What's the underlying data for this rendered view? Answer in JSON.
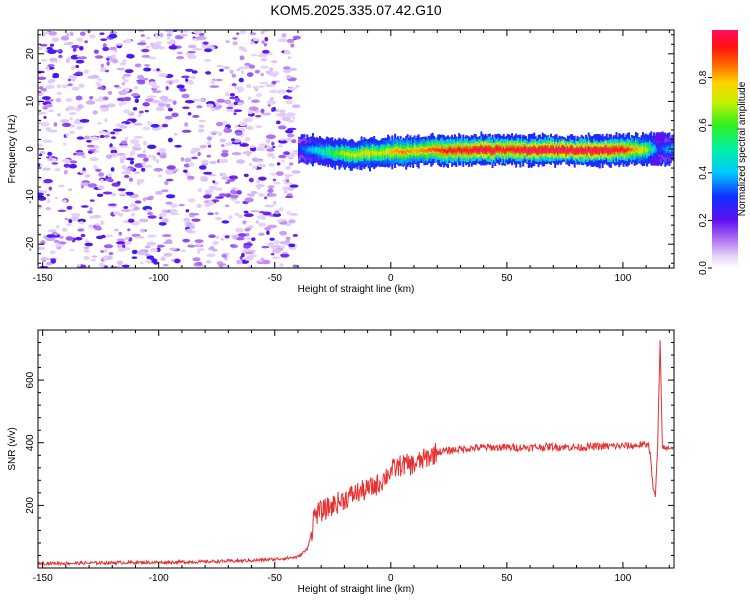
{
  "title": "KOM5.2025.335.07.42.G10",
  "chart_data": [
    {
      "type": "heatmap",
      "xlabel": "Height of straight line (km)",
      "ylabel": "Frequency (Hz)",
      "xlim": [
        -152,
        122
      ],
      "ylim": [
        -25,
        25
      ],
      "xticks": [
        -150,
        -100,
        -50,
        0,
        50,
        100
      ],
      "yticks": [
        -20,
        -10,
        0,
        10,
        20
      ],
      "colorbar": {
        "label": "Normalized spectral amplitude",
        "range": [
          0,
          1
        ],
        "ticks": [
          0.0,
          0.2,
          0.4,
          0.6,
          0.8
        ],
        "tick_labels": [
          "0.0",
          "0.2",
          "0.4",
          "0.6",
          "0.8"
        ]
      },
      "regions": [
        {
          "x": [
            -152,
            -40
          ],
          "y": [
            -25,
            25
          ],
          "amplitude": [
            0.05,
            0.25
          ]
        },
        {
          "x": [
            -40,
            110
          ],
          "y": [
            -2,
            1
          ],
          "amplitude": [
            0.3,
            1.0
          ]
        },
        {
          "x": [
            110,
            122
          ],
          "y": [
            -3,
            3
          ],
          "amplitude": [
            0.2,
            0.4
          ]
        }
      ],
      "ridge": {
        "x": [
          -40,
          -35,
          -30,
          -25,
          -20,
          -15,
          -10,
          -5,
          0,
          5,
          10,
          15,
          20,
          25,
          30,
          40,
          50,
          60,
          70,
          80,
          90,
          100,
          110,
          115,
          120
        ],
        "freq": [
          0.0,
          -0.3,
          -0.5,
          -0.8,
          -1.0,
          -1.2,
          -1.0,
          -0.8,
          -0.6,
          -0.6,
          -0.4,
          -0.2,
          -0.3,
          -0.4,
          -0.3,
          -0.2,
          -0.2,
          -0.3,
          -0.3,
          -0.3,
          -0.3,
          -0.2,
          -0.1,
          0.0,
          0.0
        ],
        "amplitude": [
          0.3,
          0.4,
          0.5,
          0.6,
          0.7,
          0.7,
          0.75,
          0.7,
          0.8,
          0.85,
          0.8,
          0.85,
          0.9,
          0.95,
          0.95,
          1.0,
          0.95,
          1.0,
          1.0,
          1.0,
          1.0,
          0.95,
          0.7,
          0.3,
          0.4
        ]
      }
    },
    {
      "type": "line",
      "xlabel": "Height of straight line (km)",
      "ylabel": "SNR (v/v)",
      "xlim": [
        -152,
        122
      ],
      "ylim": [
        0,
        760
      ],
      "xticks": [
        -150,
        -100,
        -50,
        0,
        50,
        100
      ],
      "yticks": [
        200,
        400,
        600
      ],
      "series": [
        {
          "color": "#e83030",
          "x": [
            -152,
            -140,
            -120,
            -100,
            -80,
            -60,
            -50,
            -40,
            -36,
            -34,
            -33,
            -30,
            -25,
            -20,
            -15,
            -10,
            -5,
            0,
            5,
            10,
            15,
            20,
            25,
            30,
            40,
            50,
            60,
            70,
            80,
            90,
            100,
            105,
            108,
            110,
            111,
            112,
            113,
            114,
            115,
            116,
            117,
            118,
            120,
            122
          ],
          "y": [
            15,
            15,
            17,
            18,
            20,
            24,
            28,
            35,
            60,
            120,
            170,
            180,
            200,
            220,
            240,
            250,
            270,
            310,
            330,
            330,
            350,
            370,
            375,
            380,
            385,
            385,
            385,
            388,
            385,
            388,
            390,
            390,
            395,
            390,
            400,
            350,
            250,
            230,
            400,
            720,
            390,
            380,
            385,
            385
          ]
        }
      ]
    }
  ]
}
